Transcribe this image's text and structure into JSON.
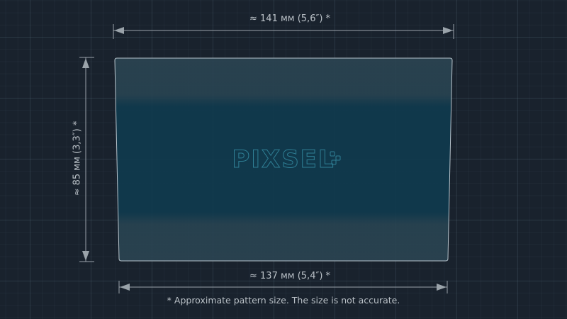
{
  "dimensions": {
    "top_width": "≈ 141 мм (5,6″) *",
    "bottom_width": "≈ 137 мм (5,4″) *",
    "height": "≈ 85 мм (3,3″) *"
  },
  "footnote": "* Approximate pattern size. The size is not accurate.",
  "logo": "PIXSEL",
  "colors": {
    "background": "#19222d",
    "film": "#0f3a4e",
    "dimension_lines": "#9aa3aa"
  }
}
